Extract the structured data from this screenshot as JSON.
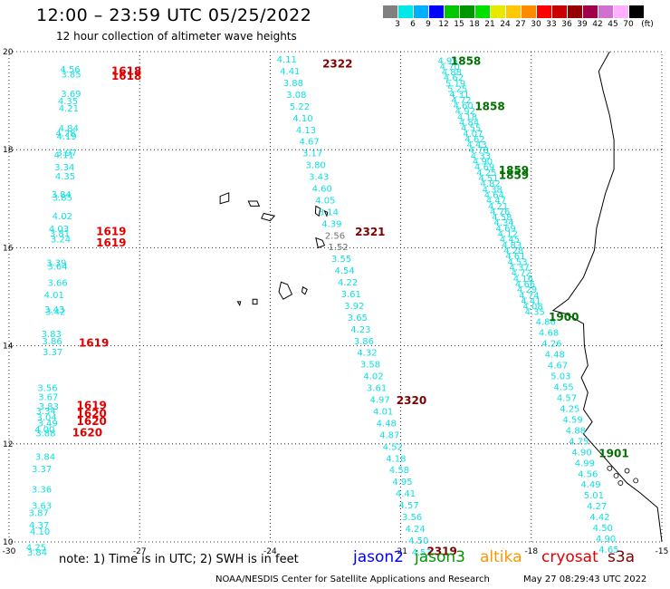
{
  "header": {
    "title": "12:00 – 23:59 UTC 05/25/2022",
    "subtitle": "12 hour collection of altimeter wave heights"
  },
  "colorbar": {
    "colors": [
      "#808080",
      "#00e8e8",
      "#00b0ff",
      "#0000ff",
      "#00c800",
      "#009600",
      "#00e000",
      "#e8e800",
      "#ffc800",
      "#ff8c00",
      "#ff0000",
      "#c80000",
      "#960000",
      "#a0004a",
      "#d070d0",
      "#ffb0ff",
      "#000000"
    ],
    "labels": [
      "3",
      "6",
      "9",
      "12",
      "15",
      "18",
      "21",
      "24",
      "27",
      "30",
      "33",
      "36",
      "39",
      "42",
      "45",
      "70",
      "(ft)"
    ]
  },
  "axes": {
    "x_ticks": [
      "-30",
      "-27",
      "-24",
      "-21",
      "-18",
      "-15"
    ],
    "y_ticks": [
      "20",
      "18",
      "16",
      "14",
      "12",
      "10"
    ]
  },
  "track_left": {
    "points": [
      {
        "lat": 19.65,
        "v": "4.56"
      },
      {
        "lat": 19.55,
        "v": "3.85"
      },
      {
        "lat": 19.15,
        "v": "3.69"
      },
      {
        "lat": 19.0,
        "v": "4.35"
      },
      {
        "lat": 18.85,
        "v": "4.21"
      },
      {
        "lat": 18.45,
        "v": "4.84"
      },
      {
        "lat": 18.35,
        "v": "4.28"
      },
      {
        "lat": 18.28,
        "v": "4.19"
      },
      {
        "lat": 17.95,
        "v": "3.97"
      },
      {
        "lat": 17.9,
        "v": "4.11"
      },
      {
        "lat": 17.65,
        "v": "3.34"
      },
      {
        "lat": 17.47,
        "v": "4.35"
      },
      {
        "lat": 17.1,
        "v": "3.84"
      },
      {
        "lat": 17.03,
        "v": "3.85"
      },
      {
        "lat": 16.65,
        "v": "4.02"
      },
      {
        "lat": 16.4,
        "v": "4.03"
      },
      {
        "lat": 16.3,
        "v": "3.81"
      },
      {
        "lat": 16.18,
        "v": "3.24"
      },
      {
        "lat": 15.7,
        "v": "3.39"
      },
      {
        "lat": 15.63,
        "v": "3.64"
      },
      {
        "lat": 15.3,
        "v": "3.66"
      },
      {
        "lat": 15.05,
        "v": "4.01"
      },
      {
        "lat": 14.75,
        "v": "3.43"
      },
      {
        "lat": 14.7,
        "v": "3.42"
      },
      {
        "lat": 14.25,
        "v": "3.83"
      },
      {
        "lat": 14.1,
        "v": "3.86"
      },
      {
        "lat": 13.88,
        "v": "3.37"
      },
      {
        "lat": 13.15,
        "v": "3.56"
      },
      {
        "lat": 12.97,
        "v": "3.67"
      },
      {
        "lat": 12.77,
        "v": "3.83"
      },
      {
        "lat": 12.68,
        "v": "3.34"
      },
      {
        "lat": 12.55,
        "v": "3.04"
      },
      {
        "lat": 12.43,
        "v": "3.49"
      },
      {
        "lat": 12.3,
        "v": "4.00"
      },
      {
        "lat": 12.23,
        "v": "3.88"
      },
      {
        "lat": 11.75,
        "v": "3.84"
      },
      {
        "lat": 11.5,
        "v": "3.37"
      },
      {
        "lat": 11.08,
        "v": "3.36"
      },
      {
        "lat": 10.75,
        "v": "3.63"
      },
      {
        "lat": 10.6,
        "v": "3.87"
      },
      {
        "lat": 10.35,
        "v": "4.37"
      },
      {
        "lat": 10.22,
        "v": "4.10"
      },
      {
        "lat": 9.9,
        "v": "4.25"
      },
      {
        "lat": 9.8,
        "v": "3.84"
      }
    ]
  },
  "track_mid": {
    "points": [
      {
        "v": "4.11"
      },
      {
        "v": "4.41"
      },
      {
        "v": "3.88"
      },
      {
        "v": "3.08"
      },
      {
        "v": "5.22"
      },
      {
        "v": "4.10"
      },
      {
        "v": "4.13"
      },
      {
        "v": "4.67"
      },
      {
        "v": "3.17"
      },
      {
        "v": "3.80"
      },
      {
        "v": "3.43"
      },
      {
        "v": "4.60"
      },
      {
        "v": "4.05"
      },
      {
        "v": "3.14"
      },
      {
        "v": "4.39"
      },
      {
        "v": "2.56",
        "gray": true
      },
      {
        "v": "1.52",
        "gray": true
      },
      {
        "v": "3.55"
      },
      {
        "v": "4.54"
      },
      {
        "v": "4.22"
      },
      {
        "v": "3.61"
      },
      {
        "v": "3.92"
      },
      {
        "v": "3.65"
      },
      {
        "v": "4.23"
      },
      {
        "v": "3.86"
      },
      {
        "v": "4.32"
      },
      {
        "v": "3.58"
      },
      {
        "v": "4.02"
      },
      {
        "v": "3.61"
      },
      {
        "v": "4.97"
      },
      {
        "v": "4.01"
      },
      {
        "v": "4.48"
      },
      {
        "v": "4.87"
      },
      {
        "v": "4.52"
      },
      {
        "v": "4.18"
      },
      {
        "v": "4.58"
      },
      {
        "v": "4.95"
      },
      {
        "v": "4.41"
      },
      {
        "v": "4.57"
      },
      {
        "v": "3.56"
      },
      {
        "v": "4.24"
      },
      {
        "v": "4.50"
      },
      {
        "v": "4.53"
      }
    ]
  },
  "track_right_top": {
    "points": [
      {
        "v": "4.95"
      },
      {
        "v": "4.70"
      },
      {
        "v": "4.88"
      },
      {
        "v": "4.62"
      },
      {
        "v": "5.19"
      },
      {
        "v": "5.25"
      },
      {
        "v": "4.31"
      },
      {
        "v": "4.72"
      },
      {
        "v": "4.60"
      },
      {
        "v": "4.92"
      },
      {
        "v": "4.18"
      },
      {
        "v": "4.84"
      },
      {
        "v": "4.55"
      },
      {
        "v": "4.07"
      },
      {
        "v": "4.62"
      },
      {
        "v": "4.43"
      },
      {
        "v": "4.78"
      },
      {
        "v": "4.33"
      },
      {
        "v": "4.90"
      },
      {
        "v": "4.69"
      },
      {
        "v": "4.25"
      },
      {
        "v": "4.51"
      },
      {
        "v": "4.82"
      },
      {
        "v": "4.38"
      },
      {
        "v": "4.64"
      },
      {
        "v": "4.47"
      },
      {
        "v": "4.21"
      },
      {
        "v": "4.76"
      },
      {
        "v": "4.58"
      },
      {
        "v": "4.34"
      },
      {
        "v": "4.69"
      },
      {
        "v": "4.12"
      },
      {
        "v": "4.45"
      },
      {
        "v": "4.83"
      },
      {
        "v": "4.28"
      },
      {
        "v": "4.61"
      },
      {
        "v": "4.53"
      },
      {
        "v": "4.37"
      },
      {
        "v": "4.72"
      },
      {
        "v": "4.16"
      },
      {
        "v": "4.66"
      },
      {
        "v": "4.29"
      },
      {
        "v": "4.74"
      },
      {
        "v": "4.41"
      },
      {
        "v": "4.08"
      },
      {
        "v": "4.35"
      }
    ]
  },
  "track_right_bottom": {
    "points": [
      {
        "v": "4.86"
      },
      {
        "v": "4.68"
      },
      {
        "v": "4.26"
      },
      {
        "v": "4.48"
      },
      {
        "v": "4.67"
      },
      {
        "v": "5.03"
      },
      {
        "v": "4.55"
      },
      {
        "v": "4.57"
      },
      {
        "v": "4.25"
      },
      {
        "v": "4.59"
      },
      {
        "v": "4.88"
      },
      {
        "v": "4.75"
      },
      {
        "v": "4.90"
      },
      {
        "v": "4.99"
      },
      {
        "v": "4.56"
      },
      {
        "v": "4.49"
      },
      {
        "v": "5.01"
      },
      {
        "v": "4.27"
      },
      {
        "v": "4.42"
      },
      {
        "v": "4.50"
      },
      {
        "v": "4.90"
      },
      {
        "v": "4.65"
      }
    ]
  },
  "time_labels": [
    {
      "text": "1618",
      "color": "#e00000",
      "lon": -27.65,
      "lat": 19.62
    },
    {
      "text": "1618",
      "color": "#e00000",
      "lon": -27.65,
      "lat": 19.52
    },
    {
      "text": "1619",
      "color": "#e00000",
      "lon": -28.0,
      "lat": 16.35
    },
    {
      "text": "1619",
      "color": "#e00000",
      "lon": -28.0,
      "lat": 16.12
    },
    {
      "text": "1619",
      "color": "#e00000",
      "lon": -28.4,
      "lat": 14.08
    },
    {
      "text": "1619",
      "color": "#e00000",
      "lon": -28.45,
      "lat": 12.8
    },
    {
      "text": "1620",
      "color": "#e00000",
      "lon": -28.45,
      "lat": 12.63
    },
    {
      "text": "1620",
      "color": "#e00000",
      "lon": -28.45,
      "lat": 12.48
    },
    {
      "text": "1620",
      "color": "#e00000",
      "lon": -28.55,
      "lat": 12.25
    },
    {
      "text": "2322",
      "color": "#800000",
      "lon": -22.8,
      "lat": 19.77
    },
    {
      "text": "2321",
      "color": "#800000",
      "lon": -22.05,
      "lat": 16.34
    },
    {
      "text": "2320",
      "color": "#800000",
      "lon": -21.1,
      "lat": 12.9
    },
    {
      "text": "2319",
      "color": "#800000",
      "lon": -20.4,
      "lat": 9.82
    },
    {
      "text": "1858",
      "color": "#007000",
      "lon": -19.85,
      "lat": 19.82
    },
    {
      "text": "1858",
      "color": "#007000",
      "lon": -19.3,
      "lat": 18.9
    },
    {
      "text": "1859",
      "color": "#007000",
      "lon": -18.75,
      "lat": 17.6
    },
    {
      "text": "1859",
      "color": "#007000",
      "lon": -18.75,
      "lat": 17.5
    },
    {
      "text": "1900",
      "color": "#007000",
      "lon": -17.6,
      "lat": 14.6
    },
    {
      "text": "1901",
      "color": "#007000",
      "lon": -16.45,
      "lat": 11.82
    }
  ],
  "footer": {
    "note": "note:  1) Time is in UTC;  2) SWH is in feet",
    "legend": [
      {
        "name": "jason2",
        "color": "#0000ff"
      },
      {
        "name": "jason3",
        "color": "#009600"
      },
      {
        "name": "altika",
        "color": "#ff9600"
      },
      {
        "name": "cryosat",
        "color": "#e00000"
      },
      {
        "name": "s3a",
        "color": "#800000"
      }
    ],
    "credit": "NOAA/NESDIS Center for Satellite Applications and Research",
    "datestamp": "May 27 08:29:43 UTC 2022"
  }
}
